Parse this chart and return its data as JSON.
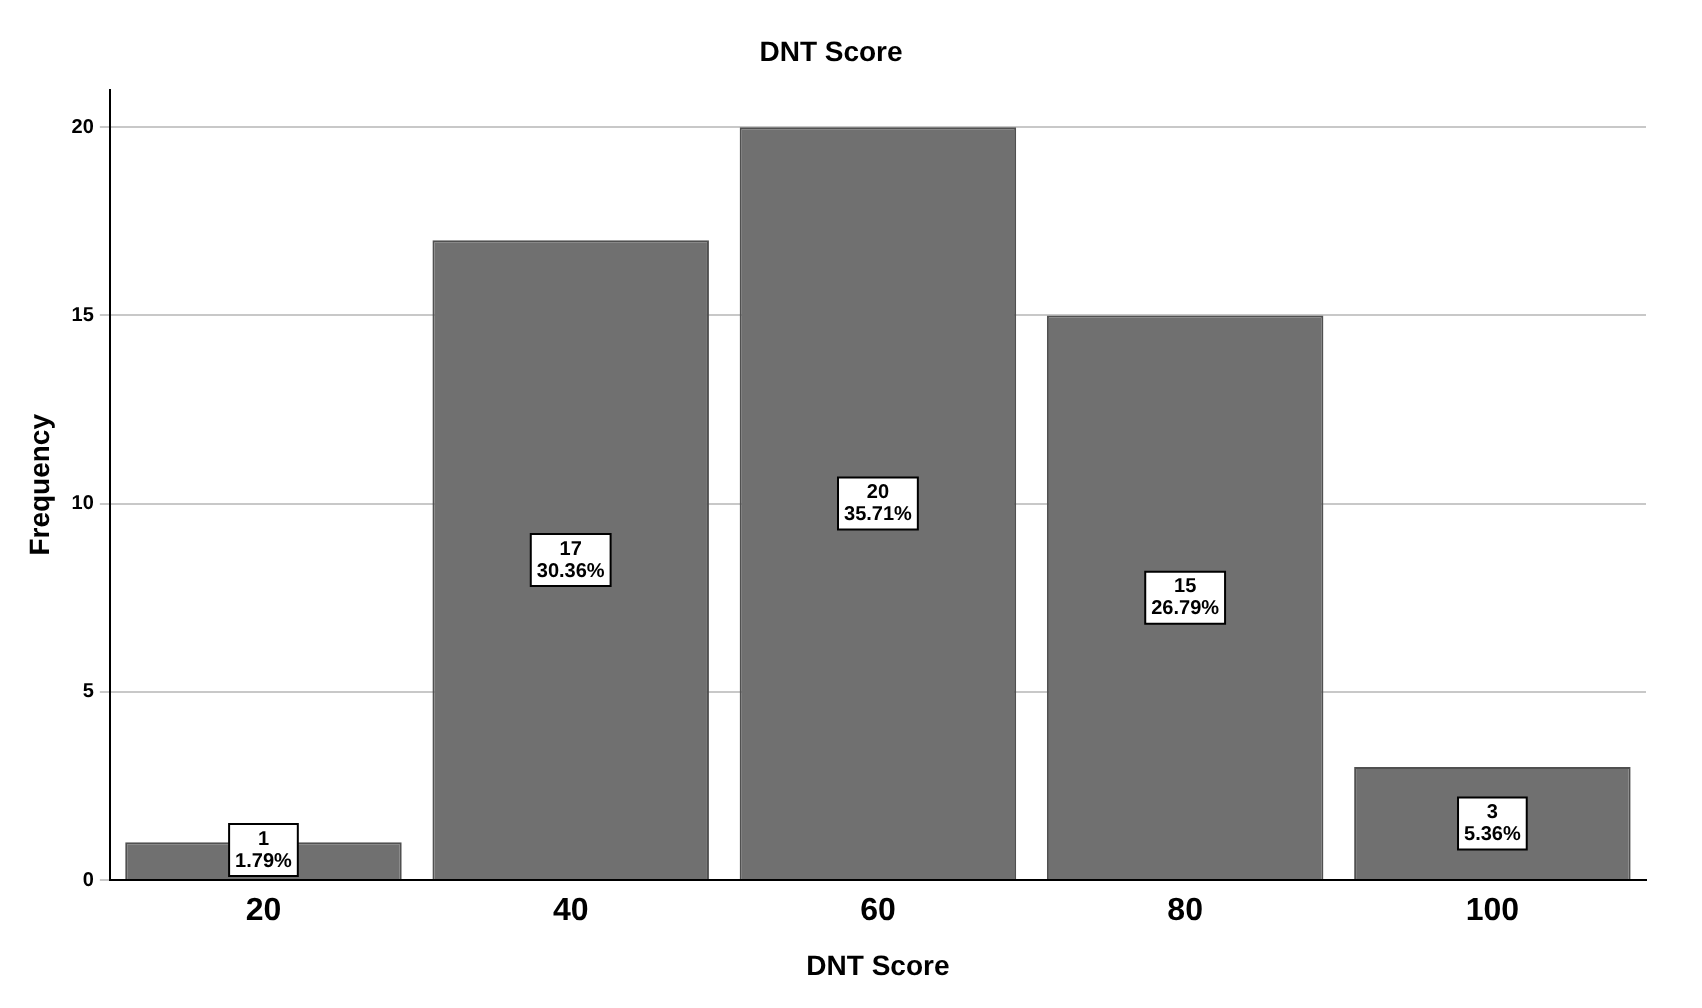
{
  "chart_data": {
    "type": "bar",
    "title": "DNT Score",
    "xlabel": "DNT Score",
    "ylabel": "Frequency",
    "categories": [
      "20",
      "40",
      "60",
      "80",
      "100"
    ],
    "values": [
      1,
      17,
      20,
      15,
      3
    ],
    "value_labels": [
      "1\n1.79%",
      "17\n30.36%",
      "20\n35.71%",
      "15\n26.79%",
      "3\n5.36%"
    ],
    "color": "#707070",
    "ylim": [
      0,
      21
    ],
    "yticks": [
      0,
      5,
      10,
      15,
      20
    ],
    "grid": "y",
    "legend": false
  }
}
